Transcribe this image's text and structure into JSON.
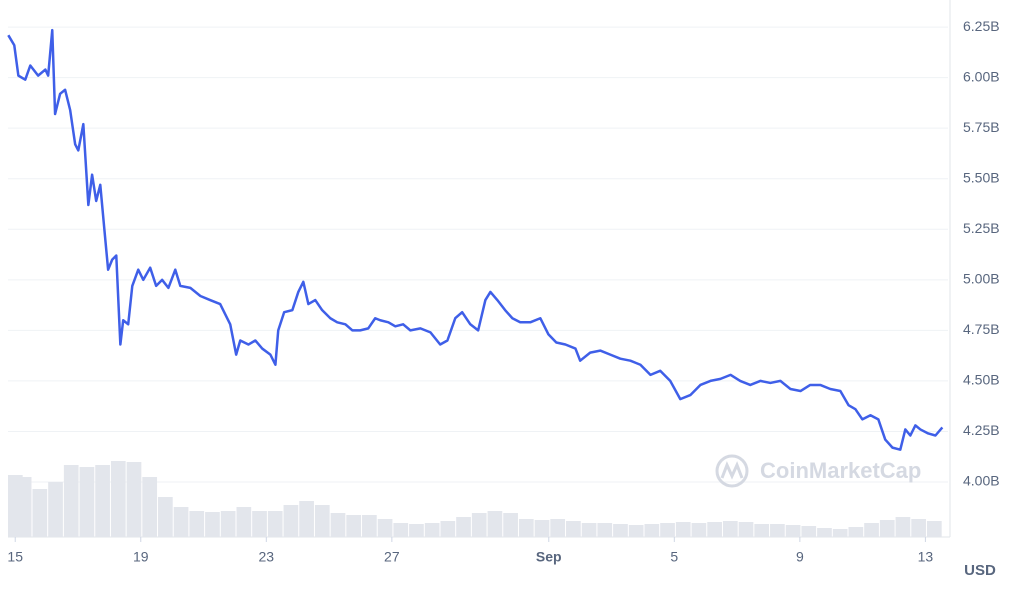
{
  "chart_data": {
    "type": "line",
    "currency": "USD",
    "watermark": "CoinMarketCap",
    "color": "#3f5fe8",
    "grid": true,
    "x": [
      -0.22,
      -0.03,
      0.1,
      0.32,
      0.48,
      0.73,
      0.96,
      1.05,
      1.18,
      1.27,
      1.43,
      1.59,
      1.75,
      1.91,
      2.01,
      2.17,
      2.33,
      2.45,
      2.58,
      2.71,
      2.84,
      2.96,
      3.09,
      3.22,
      3.35,
      3.44,
      3.6,
      3.73,
      3.92,
      4.08,
      4.3,
      4.49,
      4.68,
      4.88,
      5.1,
      5.26,
      5.58,
      5.9,
      6.21,
      6.53,
      6.85,
      7.04,
      7.17,
      7.43,
      7.65,
      7.87,
      8.13,
      8.29,
      8.38,
      8.57,
      8.83,
      9.02,
      9.18,
      9.34,
      9.56,
      9.78,
      10.04,
      10.26,
      10.52,
      10.74,
      10.99,
      11.25,
      11.47,
      11.63,
      11.89,
      12.11,
      12.36,
      12.59,
      12.91,
      13.23,
      13.54,
      13.77,
      14.02,
      14.24,
      14.5,
      14.75,
      14.98,
      15.14,
      15.36,
      15.61,
      15.84,
      16.09,
      16.41,
      16.73,
      16.99,
      17.24,
      17.53,
      17.85,
      18.0,
      18.32,
      18.64,
      18.96,
      19.28,
      19.6,
      19.92,
      20.24,
      20.55,
      20.87,
      21.19,
      21.51,
      21.83,
      22.15,
      22.47,
      22.79,
      23.1,
      23.42,
      23.74,
      24.06,
      24.38,
      24.7,
      25.02,
      25.33,
      25.65,
      25.97,
      26.29,
      26.55,
      26.77,
      26.99,
      27.25,
      27.5,
      27.72,
      27.95,
      28.2,
      28.36,
      28.52,
      28.68,
      28.84,
      29.09,
      29.32,
      29.54
    ],
    "values": [
      6.21,
      6.16,
      6.01,
      5.99,
      6.06,
      6.01,
      6.04,
      6.01,
      6.235,
      5.82,
      5.92,
      5.94,
      5.84,
      5.67,
      5.64,
      5.77,
      5.37,
      5.52,
      5.39,
      5.47,
      5.25,
      5.05,
      5.1,
      5.12,
      4.68,
      4.8,
      4.78,
      4.97,
      5.05,
      5.0,
      5.06,
      4.97,
      5.0,
      4.96,
      5.05,
      4.97,
      4.96,
      4.92,
      4.9,
      4.88,
      4.78,
      4.63,
      4.7,
      4.68,
      4.7,
      4.66,
      4.63,
      4.58,
      4.75,
      4.84,
      4.85,
      4.94,
      4.99,
      4.88,
      4.9,
      4.85,
      4.81,
      4.79,
      4.78,
      4.75,
      4.75,
      4.76,
      4.81,
      4.8,
      4.79,
      4.77,
      4.78,
      4.75,
      4.76,
      4.74,
      4.68,
      4.7,
      4.81,
      4.84,
      4.78,
      4.75,
      4.9,
      4.94,
      4.9,
      4.85,
      4.81,
      4.79,
      4.79,
      4.81,
      4.73,
      4.69,
      4.68,
      4.66,
      4.6,
      4.64,
      4.65,
      4.63,
      4.61,
      4.6,
      4.58,
      4.53,
      4.55,
      4.5,
      4.41,
      4.43,
      4.48,
      4.5,
      4.51,
      4.53,
      4.5,
      4.48,
      4.5,
      4.49,
      4.5,
      4.46,
      4.45,
      4.48,
      4.48,
      4.46,
      4.45,
      4.38,
      4.36,
      4.31,
      4.33,
      4.31,
      4.21,
      4.17,
      4.16,
      4.26,
      4.23,
      4.28,
      4.26,
      4.24,
      4.23,
      4.27
    ],
    "volume_x": [
      -0.2,
      0.3,
      0.8,
      1.3,
      1.8,
      2.3,
      2.8,
      3.3,
      3.8,
      4.3,
      4.8,
      5.3,
      5.8,
      6.3,
      6.8,
      7.3,
      7.8,
      8.3,
      8.8,
      9.3,
      9.8,
      10.3,
      10.8,
      11.3,
      11.8,
      12.3,
      12.8,
      13.3,
      13.8,
      14.3,
      14.8,
      15.3,
      15.8,
      16.3,
      16.8,
      17.3,
      17.8,
      18.3,
      18.8,
      19.3,
      19.8,
      20.3,
      20.8,
      21.3,
      21.8,
      22.3,
      22.8,
      23.3,
      23.8,
      24.3,
      24.8,
      25.3,
      25.8,
      26.3,
      26.8,
      27.3,
      27.8,
      28.3,
      28.8,
      29.3
    ],
    "volume_values": [
      62,
      60,
      48,
      55,
      72,
      70,
      72,
      76,
      75,
      60,
      40,
      30,
      26,
      25,
      26,
      30,
      26,
      26,
      32,
      36,
      32,
      24,
      22,
      22,
      18,
      14,
      13,
      14,
      16,
      20,
      24,
      26,
      24,
      18,
      17,
      18,
      16,
      14,
      14,
      13,
      12,
      13,
      14,
      15,
      14,
      15,
      16,
      15,
      13,
      13,
      12,
      11,
      9,
      8,
      10,
      14,
      17,
      20,
      18,
      16
    ],
    "volume_ylim": [
      0,
      100
    ],
    "xlim": [
      -0.23,
      29.72
    ],
    "xticks": [
      {
        "value": 0,
        "label": "15"
      },
      {
        "value": 4,
        "label": "19"
      },
      {
        "value": 8,
        "label": "23"
      },
      {
        "value": 12,
        "label": "27"
      },
      {
        "value": 17,
        "label": "Sep"
      },
      {
        "value": 21,
        "label": "5"
      },
      {
        "value": 25,
        "label": "9"
      },
      {
        "value": 29,
        "label": "13"
      }
    ],
    "ylim": [
      3.728,
      6.384
    ],
    "yticks": [
      {
        "value": 4.0,
        "label": "4.00B"
      },
      {
        "value": 4.25,
        "label": "4.25B"
      },
      {
        "value": 4.5,
        "label": "4.50B"
      },
      {
        "value": 4.75,
        "label": "4.75B"
      },
      {
        "value": 5.0,
        "label": "5.00B"
      },
      {
        "value": 5.25,
        "label": "5.25B"
      },
      {
        "value": 5.5,
        "label": "5.50B"
      },
      {
        "value": 5.75,
        "label": "5.75B"
      },
      {
        "value": 6.0,
        "label": "6.00B"
      },
      {
        "value": 6.25,
        "label": "6.25B"
      }
    ]
  }
}
